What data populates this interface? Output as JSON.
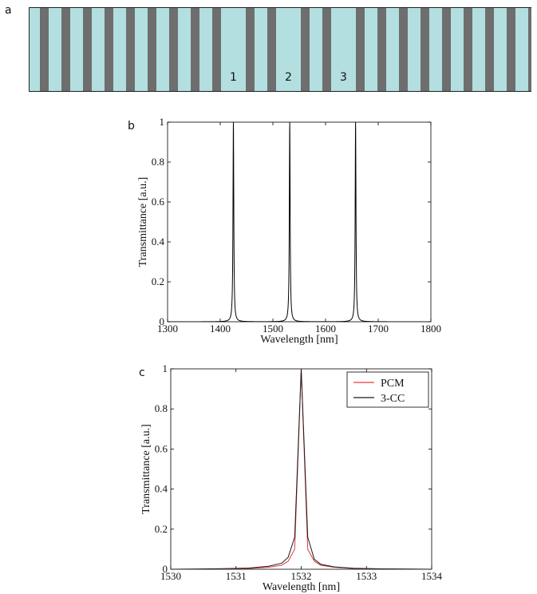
{
  "panel_labels": {
    "a": "a",
    "b": "b",
    "c": "c"
  },
  "structure": {
    "colors": {
      "light": "#b3dfe0",
      "dark": "#6e6e6e",
      "border": "#222222"
    },
    "segments": [
      {
        "kind": "L",
        "w": 14
      },
      {
        "kind": "D",
        "w": 11
      },
      {
        "kind": "L",
        "w": 16
      },
      {
        "kind": "D",
        "w": 11
      },
      {
        "kind": "L",
        "w": 16
      },
      {
        "kind": "D",
        "w": 11
      },
      {
        "kind": "L",
        "w": 16
      },
      {
        "kind": "D",
        "w": 11
      },
      {
        "kind": "L",
        "w": 16
      },
      {
        "kind": "D",
        "w": 11
      },
      {
        "kind": "L",
        "w": 16
      },
      {
        "kind": "D",
        "w": 11
      },
      {
        "kind": "L",
        "w": 16
      },
      {
        "kind": "D",
        "w": 11
      },
      {
        "kind": "L",
        "w": 16
      },
      {
        "kind": "D",
        "w": 11
      },
      {
        "kind": "L",
        "w": 16
      },
      {
        "kind": "D",
        "w": 11
      },
      {
        "kind": "L",
        "w": 31,
        "label": "1"
      },
      {
        "kind": "D",
        "w": 11
      },
      {
        "kind": "L",
        "w": 16
      },
      {
        "kind": "D",
        "w": 11
      },
      {
        "kind": "L",
        "w": 31,
        "label": "2"
      },
      {
        "kind": "D",
        "w": 11
      },
      {
        "kind": "L",
        "w": 16
      },
      {
        "kind": "D",
        "w": 11
      },
      {
        "kind": "L",
        "w": 31,
        "label": "3"
      },
      {
        "kind": "D",
        "w": 11
      },
      {
        "kind": "L",
        "w": 16
      },
      {
        "kind": "D",
        "w": 11
      },
      {
        "kind": "L",
        "w": 16
      },
      {
        "kind": "D",
        "w": 11
      },
      {
        "kind": "L",
        "w": 16
      },
      {
        "kind": "D",
        "w": 11
      },
      {
        "kind": "L",
        "w": 16
      },
      {
        "kind": "D",
        "w": 11
      },
      {
        "kind": "L",
        "w": 16
      },
      {
        "kind": "D",
        "w": 11
      },
      {
        "kind": "L",
        "w": 16
      },
      {
        "kind": "D",
        "w": 11
      },
      {
        "kind": "L",
        "w": 16
      },
      {
        "kind": "D",
        "w": 11
      },
      {
        "kind": "L",
        "w": 16
      },
      {
        "kind": "D",
        "w": 11
      },
      {
        "kind": "L",
        "w": 16
      },
      {
        "kind": "D",
        "w": 12
      }
    ]
  },
  "chart_data": [
    {
      "type": "line",
      "xlabel": "Wavelength [nm]",
      "ylabel": "Transmittance [a.u.]",
      "xlim": [
        1300,
        1800
      ],
      "ylim": [
        0,
        1
      ],
      "xticks": [
        1300,
        1400,
        1500,
        1600,
        1700,
        1800
      ],
      "yticks": [
        0,
        0.2,
        0.4,
        0.6,
        0.8,
        1
      ],
      "ytick_labels": [
        "0",
        "0.2",
        "0.4",
        "0.6",
        "0.8",
        "1"
      ],
      "series": [
        {
          "color": "#000000",
          "peaks": [
            {
              "center": 1425,
              "height": 1,
              "hwhm": 0.9
            },
            {
              "center": 1532,
              "height": 1,
              "hwhm": 0.9
            },
            {
              "center": 1657,
              "height": 1,
              "hwhm": 0.9
            }
          ]
        }
      ]
    },
    {
      "type": "line",
      "xlabel": "Wavelength [nm]",
      "ylabel": "Transmittance [a.u.]",
      "xlim": [
        1530,
        1534
      ],
      "ylim": [
        0,
        1
      ],
      "xticks": [
        1530,
        1531,
        1532,
        1533,
        1534
      ],
      "yticks": [
        0,
        0.2,
        0.4,
        0.6,
        0.8,
        1
      ],
      "ytick_labels": [
        "0",
        "0.2",
        "0.4",
        "0.6",
        "0.8",
        "1"
      ],
      "legend": "top-right",
      "series": [
        {
          "name": "PCM",
          "color": "#e8393c",
          "x": [
            1530,
            1530.4,
            1530.8,
            1531.2,
            1531.5,
            1531.7,
            1531.8,
            1531.9,
            1532,
            1532.1,
            1532.2,
            1532.3,
            1532.5,
            1532.8,
            1533.2,
            1533.6,
            1534
          ],
          "y": [
            0,
            0.001,
            0.002,
            0.004,
            0.01,
            0.02,
            0.04,
            0.1,
            1,
            0.1,
            0.04,
            0.02,
            0.01,
            0.004,
            0.002,
            0.001,
            0
          ]
        },
        {
          "name": "3-CC",
          "color": "#1a1a1a",
          "x": [
            1530,
            1530.4,
            1530.8,
            1531.2,
            1531.5,
            1531.7,
            1531.8,
            1531.9,
            1532,
            1532.1,
            1532.2,
            1532.3,
            1532.5,
            1532.8,
            1533.2,
            1533.6,
            1534
          ],
          "y": [
            0,
            0.001,
            0.003,
            0.006,
            0.015,
            0.03,
            0.06,
            0.16,
            1,
            0.16,
            0.05,
            0.025,
            0.012,
            0.005,
            0.002,
            0.001,
            0
          ]
        }
      ]
    }
  ]
}
